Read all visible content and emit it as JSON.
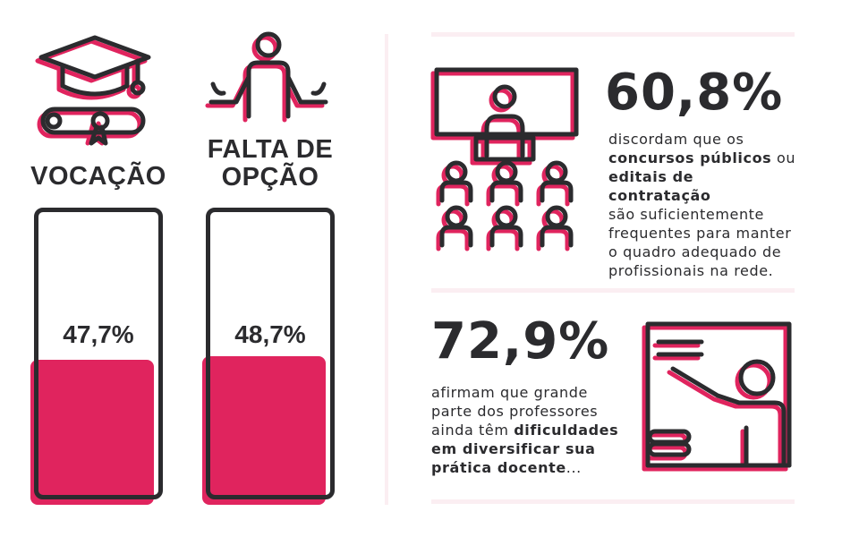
{
  "colors": {
    "accent": "#e0245e",
    "ink": "#2b2b2e",
    "divider": "#fbeef2"
  },
  "left": {
    "vocacao": {
      "title": "VOCAÇÃO",
      "icon": "graduation-cap-diploma-icon",
      "value_label": "47,7%",
      "fill_percent": 47.7
    },
    "falta_opcao": {
      "title_line1": "FALTA DE",
      "title_line2": "OPÇÃO",
      "icon": "shrugging-person-icon",
      "value_label": "48,7%",
      "fill_percent": 48.7
    }
  },
  "right": {
    "stat1": {
      "value": "60,8%",
      "icon": "classroom-audience-icon",
      "text": {
        "l1": "discordam que os",
        "l2_bold": "concursos públicos",
        "l2_rest": " ou",
        "l3_bold": "editais de contratação",
        "l4": "são suficientemente",
        "l5": "frequentes para manter",
        "l6": "o quadro adequado de",
        "l7": "profissionais na rede."
      }
    },
    "stat2": {
      "value": "72,9%",
      "icon": "teacher-at-board-icon",
      "text": {
        "l1": "afirmam que grande",
        "l2": "parte dos professores",
        "l3_pre": "ainda têm ",
        "l3_bold": "dificuldades",
        "l4_bold": "em diversificar sua",
        "l5_bold": "prática docente",
        "l5_rest": "..."
      }
    }
  }
}
